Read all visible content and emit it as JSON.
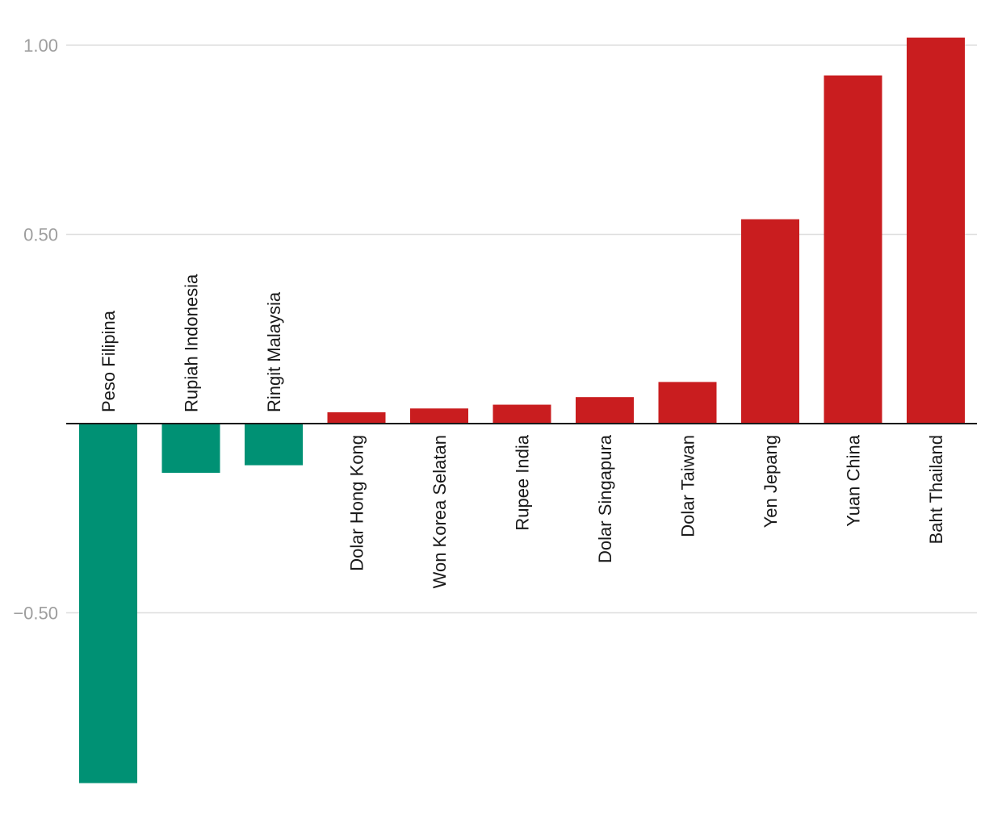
{
  "chart_data": {
    "type": "bar",
    "title": "",
    "xlabel": "",
    "ylabel": "",
    "categories": [
      "Peso Filipina",
      "Rupiah Indonesia",
      "Ringit Malaysia",
      "Dolar Hong Kong",
      "Won Korea Selatan",
      "Rupee India",
      "Dolar Singapura",
      "Dolar Taiwan",
      "Yen Jepang",
      "Yuan China",
      "Baht Thailand"
    ],
    "values": [
      -0.95,
      -0.13,
      -0.11,
      0.03,
      0.04,
      0.05,
      0.07,
      0.11,
      0.54,
      0.92,
      1.02
    ],
    "ylim": [
      -0.98,
      1.08
    ],
    "yticks": [
      {
        "value": 1.0,
        "label": "1.00"
      },
      {
        "value": 0.5,
        "label": "0.50"
      },
      {
        "value": -0.5,
        "label": "−0.50"
      }
    ],
    "grid": true,
    "legend": "none",
    "colors": {
      "negative": "#009174",
      "positive": "#c91d1f"
    }
  }
}
